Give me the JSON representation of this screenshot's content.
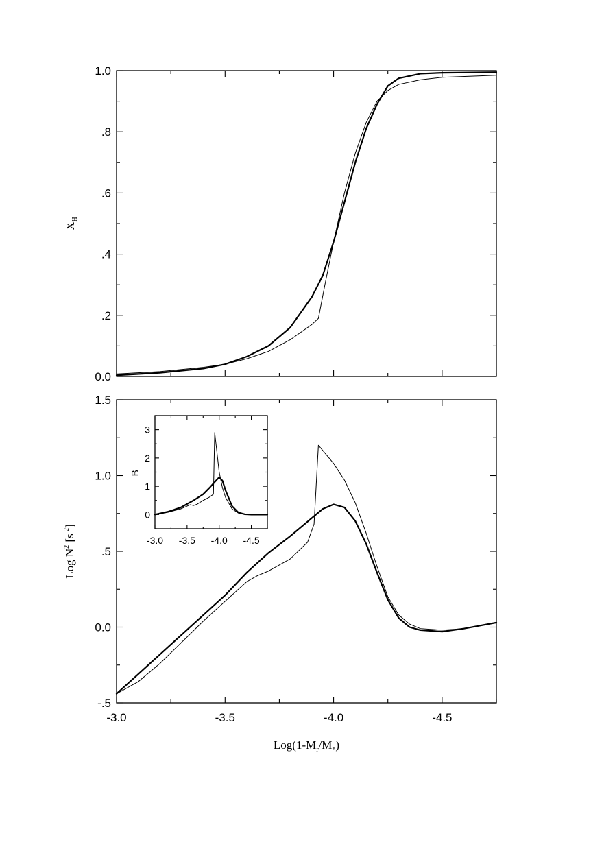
{
  "chart_data": [
    {
      "type": "line",
      "panel": "top",
      "ylabel": "X_H",
      "ylabel_main": "X",
      "ylabel_sub": "H",
      "xlim": [
        -3.0,
        -4.75
      ],
      "ylim": [
        0.0,
        1.0
      ],
      "y_ticks": [
        0.0,
        0.2,
        0.4,
        0.6,
        0.8,
        1.0
      ],
      "y_tick_labels": [
        "0.0",
        ".2",
        ".4",
        ".6",
        ".8",
        "1.0"
      ],
      "series": [
        {
          "style": "thick",
          "x": [
            -3.0,
            -3.2,
            -3.4,
            -3.5,
            -3.6,
            -3.7,
            -3.8,
            -3.9,
            -3.95,
            -4.0,
            -4.05,
            -4.1,
            -4.15,
            -4.2,
            -4.25,
            -4.3,
            -4.4,
            -4.5,
            -4.75
          ],
          "y": [
            0.004,
            0.012,
            0.026,
            0.04,
            0.065,
            0.1,
            0.16,
            0.26,
            0.33,
            0.44,
            0.57,
            0.7,
            0.81,
            0.89,
            0.95,
            0.975,
            0.99,
            0.993,
            0.995
          ]
        },
        {
          "style": "thin",
          "x": [
            -3.0,
            -3.2,
            -3.4,
            -3.5,
            -3.6,
            -3.7,
            -3.8,
            -3.9,
            -3.93,
            -3.96,
            -4.0,
            -4.05,
            -4.1,
            -4.15,
            -4.2,
            -4.25,
            -4.3,
            -4.4,
            -4.5,
            -4.75
          ],
          "y": [
            0.008,
            0.016,
            0.03,
            0.04,
            0.058,
            0.082,
            0.12,
            0.17,
            0.19,
            0.3,
            0.44,
            0.6,
            0.73,
            0.83,
            0.9,
            0.935,
            0.955,
            0.97,
            0.978,
            0.985
          ]
        }
      ]
    },
    {
      "type": "line",
      "panel": "bottom",
      "xlabel": "Log(1-M_r/M_*)",
      "xlabel_parts": [
        "Log(1-M",
        "r",
        "/M",
        "*",
        ")"
      ],
      "ylabel": "Log N^2 [s^-2]",
      "ylabel_parts": [
        "Log N",
        "2",
        " [s",
        "-2",
        "]"
      ],
      "xlim": [
        -3.0,
        -4.75
      ],
      "ylim": [
        -0.5,
        1.5
      ],
      "x_ticks": [
        -3.0,
        -3.5,
        -4.0,
        -4.5
      ],
      "x_tick_labels": [
        "-3.0",
        "-3.5",
        "-4.0",
        "-4.5"
      ],
      "y_ticks": [
        -0.5,
        0.0,
        0.5,
        1.0,
        1.5
      ],
      "y_tick_labels": [
        "-.5",
        "0.0",
        ".5",
        "1.0",
        "1.5"
      ],
      "series": [
        {
          "style": "thick",
          "x": [
            -3.0,
            -3.1,
            -3.2,
            -3.3,
            -3.4,
            -3.5,
            -3.6,
            -3.7,
            -3.8,
            -3.9,
            -3.95,
            -4.0,
            -4.05,
            -4.1,
            -4.15,
            -4.2,
            -4.25,
            -4.3,
            -4.35,
            -4.4,
            -4.5,
            -4.6,
            -4.75
          ],
          "y": [
            -0.44,
            -0.31,
            -0.18,
            -0.05,
            0.08,
            0.21,
            0.36,
            0.49,
            0.6,
            0.72,
            0.78,
            0.81,
            0.79,
            0.7,
            0.55,
            0.36,
            0.18,
            0.06,
            0.0,
            -0.02,
            -0.03,
            -0.01,
            0.03
          ]
        },
        {
          "style": "thin",
          "x": [
            -3.0,
            -3.1,
            -3.2,
            -3.3,
            -3.4,
            -3.5,
            -3.6,
            -3.65,
            -3.7,
            -3.8,
            -3.88,
            -3.91,
            -3.93,
            -4.0,
            -4.05,
            -4.1,
            -4.15,
            -4.2,
            -4.25,
            -4.3,
            -4.35,
            -4.4,
            -4.5,
            -4.6,
            -4.75
          ],
          "y": [
            -0.44,
            -0.36,
            -0.24,
            -0.1,
            0.04,
            0.17,
            0.3,
            0.34,
            0.37,
            0.45,
            0.56,
            0.68,
            1.2,
            1.08,
            0.97,
            0.82,
            0.62,
            0.4,
            0.2,
            0.08,
            0.02,
            -0.01,
            -0.02,
            -0.01,
            0.03
          ]
        }
      ]
    },
    {
      "type": "line",
      "panel": "inset",
      "ylabel": "B",
      "xlim": [
        -3.0,
        -4.75
      ],
      "ylim": [
        -0.5,
        3.5
      ],
      "x_ticks": [
        -3.0,
        -3.5,
        -4.0,
        -4.5
      ],
      "x_tick_labels": [
        "-3.0",
        "-3.5",
        "-4.0",
        "-4.5"
      ],
      "y_ticks": [
        0,
        1,
        2,
        3
      ],
      "y_tick_labels": [
        "0",
        "1",
        "2",
        "3"
      ],
      "series": [
        {
          "style": "thick",
          "x": [
            -3.0,
            -3.2,
            -3.4,
            -3.6,
            -3.75,
            -3.85,
            -3.95,
            -4.0,
            -4.05,
            -4.1,
            -4.2,
            -4.3,
            -4.4,
            -4.5,
            -4.75
          ],
          "y": [
            0.0,
            0.1,
            0.25,
            0.5,
            0.72,
            0.95,
            1.2,
            1.32,
            1.2,
            0.85,
            0.3,
            0.07,
            0.01,
            0.0,
            0.0
          ]
        },
        {
          "style": "thin",
          "x": [
            -3.0,
            -3.2,
            -3.4,
            -3.55,
            -3.6,
            -3.65,
            -3.75,
            -3.85,
            -3.91,
            -3.93,
            -3.96,
            -4.0,
            -4.05,
            -4.1,
            -4.2,
            -4.3,
            -4.4,
            -4.5,
            -4.75
          ],
          "y": [
            0.0,
            0.08,
            0.2,
            0.35,
            0.32,
            0.36,
            0.5,
            0.62,
            0.72,
            2.9,
            2.3,
            1.5,
            0.95,
            0.6,
            0.2,
            0.05,
            0.01,
            0.0,
            0.0
          ]
        }
      ]
    }
  ]
}
